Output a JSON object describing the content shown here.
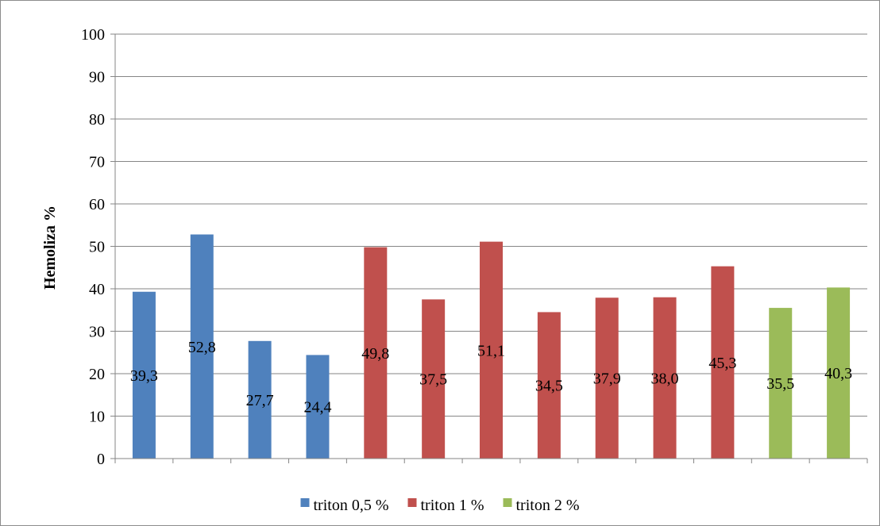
{
  "chart_data": {
    "type": "bar",
    "ylabel": "Hemoliza %",
    "xlabel": "",
    "ylim": [
      0,
      100
    ],
    "yticks": [
      "0",
      "10",
      "20",
      "30",
      "40",
      "50",
      "60",
      "70",
      "80",
      "90",
      "100"
    ],
    "grid": "horizontal",
    "legend_position": "bottom",
    "series": [
      {
        "name": "triton 0,5 %",
        "color": "#4f81bd",
        "values": [
          39.3,
          52.8,
          27.7,
          24.4
        ],
        "labels": [
          "39,3",
          "52,8",
          "27,7",
          "24,4"
        ]
      },
      {
        "name": "triton 1 %",
        "color": "#c0504d",
        "values": [
          49.8,
          37.5,
          51.1,
          34.5,
          37.9,
          38.0,
          45.3
        ],
        "labels": [
          "49,8",
          "37,5",
          "51,1",
          "34,5",
          "37,9",
          "38,0",
          "45,3"
        ]
      },
      {
        "name": "triton 2 %",
        "color": "#9bbb59",
        "values": [
          35.5,
          40.3
        ],
        "labels": [
          "35,5",
          "40,3"
        ]
      }
    ]
  }
}
